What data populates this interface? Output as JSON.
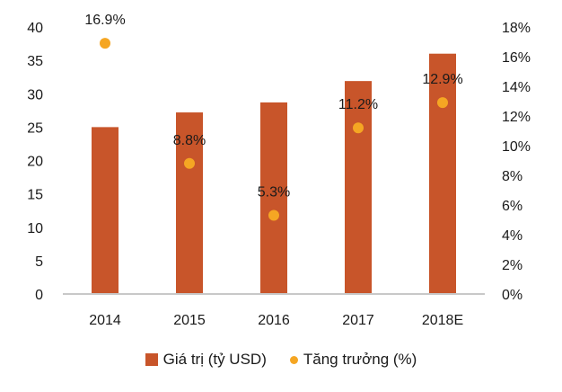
{
  "chart_data": {
    "type": "bar",
    "title": "",
    "categories": [
      "2014",
      "2015",
      "2016",
      "2017",
      "2018E"
    ],
    "series": [
      {
        "name": "Giá trị (tỷ USD)",
        "kind": "bar",
        "axis": "left",
        "color": "#c8552a",
        "values": [
          25.0,
          27.2,
          28.7,
          31.9,
          36.0
        ]
      },
      {
        "name": "Tăng trưởng (%)",
        "kind": "scatter",
        "axis": "right",
        "color": "#f5a623",
        "values": [
          16.9,
          8.8,
          5.3,
          11.2,
          12.9
        ],
        "labels": [
          "16.9%",
          "8.8%",
          "5.3%",
          "11.2%",
          "12.9%"
        ]
      }
    ],
    "y_left": {
      "label": "",
      "range": [
        0,
        40
      ],
      "ticks": [
        "0",
        "5",
        "10",
        "15",
        "20",
        "25",
        "30",
        "35",
        "40"
      ]
    },
    "y_right": {
      "label": "",
      "range": [
        0,
        18
      ],
      "ticks": [
        "0%",
        "2%",
        "4%",
        "6%",
        "8%",
        "10%",
        "12%",
        "14%",
        "16%",
        "18%"
      ]
    },
    "xlabel": "",
    "grid": false,
    "legend_position": "bottom"
  },
  "legend": {
    "bar_label": "Giá trị (tỷ USD)",
    "dot_label": "Tăng trưởng (%)"
  }
}
